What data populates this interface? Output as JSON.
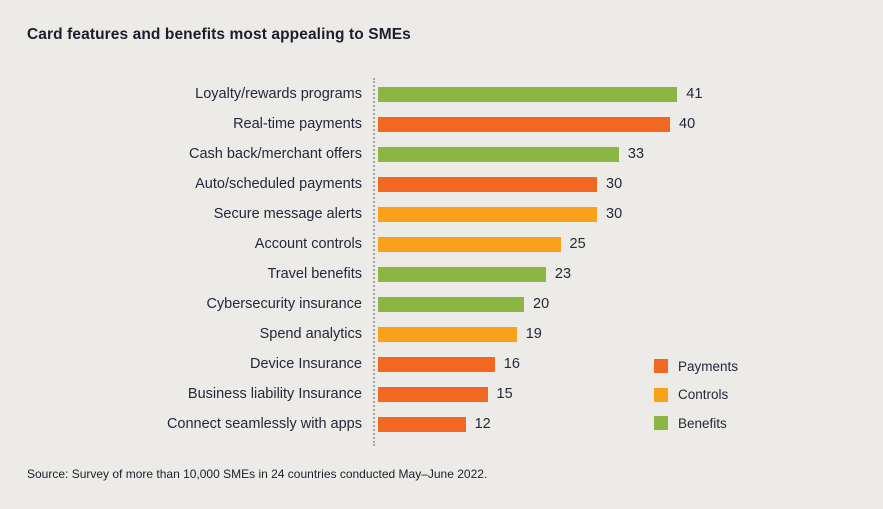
{
  "title": "Card features and benefits most appealing to SMEs",
  "source_note": "Source: Survey of more than 10,000 SMEs in 24 countries conducted May–June 2022.",
  "colors": {
    "background": "#edebe7",
    "text": "#25273a",
    "payments": "#f26722",
    "controls": "#f9a11b",
    "benefits": "#8bb643",
    "axis_dotted": "#a6a6a2"
  },
  "legend": {
    "position": "right-bottom",
    "items": [
      {
        "label": "Payments",
        "series_key": "payments",
        "color": "#f26722"
      },
      {
        "label": "Controls",
        "series_key": "controls",
        "color": "#f9a11b"
      },
      {
        "label": "Benefits",
        "series_key": "benefits",
        "color": "#8bb643"
      }
    ]
  },
  "chart_data": {
    "type": "bar",
    "orientation": "horizontal",
    "title": "Card features and benefits most appealing to SMEs",
    "xlabel": "",
    "ylabel": "",
    "xlim": [
      0,
      45
    ],
    "grid": false,
    "value_labels": "end-of-bar",
    "categories": [
      "Loyalty/rewards programs",
      "Real-time payments",
      "Cash back/merchant offers",
      "Auto/scheduled payments",
      "Secure message alerts",
      "Account controls",
      "Travel benefits",
      "Cybersecurity insurance",
      "Spend analytics",
      "Device Insurance",
      "Business liability Insurance",
      "Connect seamlessly with apps"
    ],
    "values": [
      41,
      40,
      33,
      30,
      30,
      25,
      23,
      20,
      19,
      16,
      15,
      12
    ],
    "bar_series": [
      "benefits",
      "payments",
      "benefits",
      "payments",
      "controls",
      "controls",
      "benefits",
      "benefits",
      "controls",
      "payments",
      "payments",
      "payments"
    ]
  }
}
